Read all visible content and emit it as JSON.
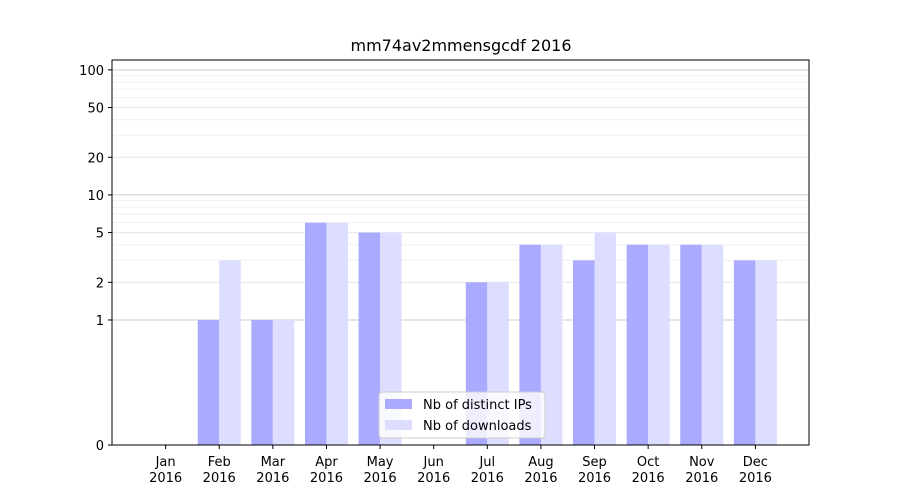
{
  "chart_data": {
    "type": "bar",
    "title": "mm74av2mmensgcdf 2016",
    "xlabel": "",
    "ylabel": "",
    "y_scale": "symlog",
    "ylim": [
      0,
      120
    ],
    "y_ticks": [
      0,
      1,
      2,
      5,
      10,
      20,
      50,
      100
    ],
    "categories": [
      [
        "Jan",
        "2016"
      ],
      [
        "Feb",
        "2016"
      ],
      [
        "Mar",
        "2016"
      ],
      [
        "Apr",
        "2016"
      ],
      [
        "May",
        "2016"
      ],
      [
        "Jun",
        "2016"
      ],
      [
        "Jul",
        "2016"
      ],
      [
        "Aug",
        "2016"
      ],
      [
        "Sep",
        "2016"
      ],
      [
        "Oct",
        "2016"
      ],
      [
        "Nov",
        "2016"
      ],
      [
        "Dec",
        "2016"
      ]
    ],
    "series": [
      {
        "name": "Nb of distinct IPs",
        "color": "#aaaaff",
        "values": [
          0,
          1,
          1,
          6,
          5,
          0,
          2,
          4,
          3,
          4,
          4,
          3
        ]
      },
      {
        "name": "Nb of downloads",
        "color": "#ddddff",
        "values": [
          0,
          3,
          1,
          6,
          5,
          0,
          2,
          4,
          5,
          4,
          4,
          3
        ]
      }
    ],
    "grid": true,
    "legend": "bottom-center"
  }
}
